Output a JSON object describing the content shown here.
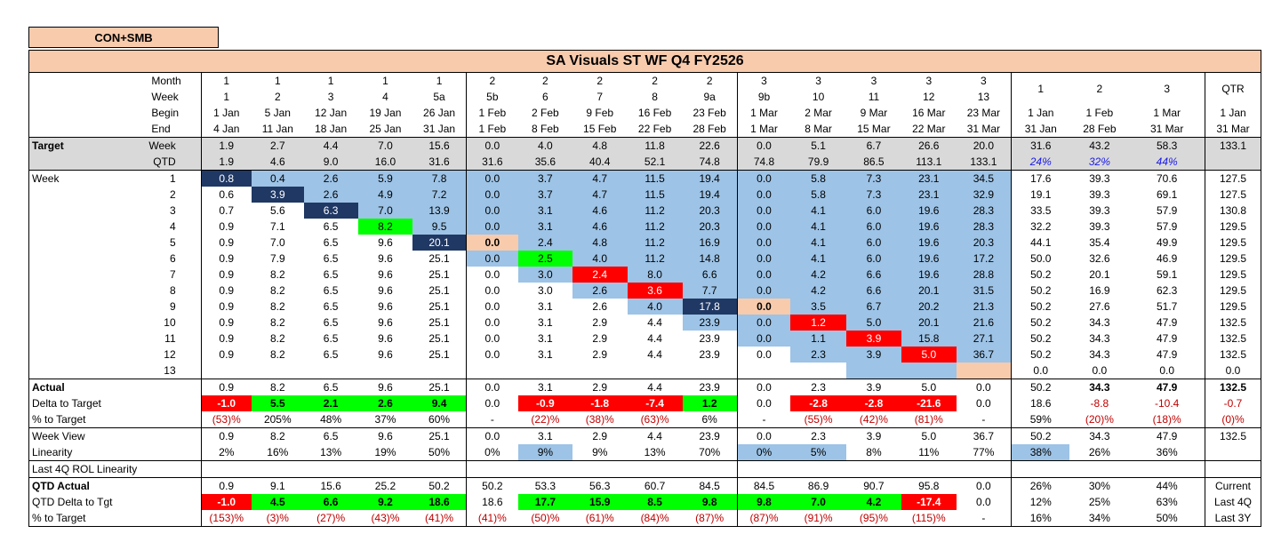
{
  "segment": "CON+SMB",
  "title": "SA Visuals ST WF Q4 FY2526",
  "header": {
    "labels": [
      "Month",
      "Week",
      "Begin",
      "End"
    ],
    "month": [
      "1",
      "1",
      "1",
      "1",
      "1",
      "2",
      "2",
      "2",
      "2",
      "2",
      "3",
      "3",
      "3",
      "3",
      "3"
    ],
    "week": [
      "1",
      "2",
      "3",
      "4",
      "5a",
      "5b",
      "6",
      "7",
      "8",
      "9a",
      "9b",
      "10",
      "11",
      "12",
      "13"
    ],
    "begin": [
      "1 Jan",
      "5 Jan",
      "12 Jan",
      "19 Jan",
      "26 Jan",
      "1 Feb",
      "2 Feb",
      "9 Feb",
      "16 Feb",
      "23 Feb",
      "1 Mar",
      "2 Mar",
      "9 Mar",
      "16 Mar",
      "23 Mar",
      "1 Jan",
      "1 Feb",
      "1 Mar",
      "1 Jan"
    ],
    "end": [
      "4 Jan",
      "11 Jan",
      "18 Jan",
      "25 Jan",
      "31 Jan",
      "1 Feb",
      "8 Feb",
      "15 Feb",
      "22 Feb",
      "28 Feb",
      "1 Mar",
      "8 Mar",
      "15 Mar",
      "22 Mar",
      "31 Mar",
      "31 Jan",
      "28 Feb",
      "31 Mar",
      "31 Mar"
    ],
    "summary": [
      "1",
      "2",
      "3",
      "QTR"
    ]
  },
  "target": {
    "label": "Target",
    "week_label": "Week",
    "qtd_label": "QTD",
    "week": [
      "1.9",
      "2.7",
      "4.4",
      "7.0",
      "15.6",
      "0.0",
      "4.0",
      "4.8",
      "11.8",
      "22.6",
      "0.0",
      "5.1",
      "6.7",
      "26.6",
      "20.0",
      "31.6",
      "43.2",
      "58.3",
      "133.1"
    ],
    "qtd": [
      "1.9",
      "4.6",
      "9.0",
      "16.0",
      "31.6",
      "31.6",
      "35.6",
      "40.4",
      "52.1",
      "74.8",
      "74.8",
      "79.9",
      "86.5",
      "113.1",
      "133.1",
      "24%",
      "32%",
      "44%",
      ""
    ]
  },
  "weeks": {
    "label": "Week",
    "rows": [
      {
        "n": "1",
        "v": [
          "0.8",
          "0.4",
          "2.6",
          "5.9",
          "7.8",
          "0.0",
          "3.7",
          "4.7",
          "11.5",
          "19.4",
          "0.0",
          "5.8",
          "7.3",
          "23.1",
          "34.5",
          "17.6",
          "39.3",
          "70.6",
          "127.5"
        ]
      },
      {
        "n": "2",
        "v": [
          "0.6",
          "3.9",
          "2.6",
          "4.9",
          "7.2",
          "0.0",
          "3.7",
          "4.7",
          "11.5",
          "19.4",
          "0.0",
          "5.8",
          "7.3",
          "23.1",
          "32.9",
          "19.1",
          "39.3",
          "69.1",
          "127.5"
        ]
      },
      {
        "n": "3",
        "v": [
          "0.7",
          "5.6",
          "6.3",
          "7.0",
          "13.9",
          "0.0",
          "3.1",
          "4.6",
          "11.2",
          "20.3",
          "0.0",
          "4.1",
          "6.0",
          "19.6",
          "28.3",
          "33.5",
          "39.3",
          "57.9",
          "130.8"
        ]
      },
      {
        "n": "4",
        "v": [
          "0.9",
          "7.1",
          "6.5",
          "8.2",
          "9.5",
          "0.0",
          "3.1",
          "4.6",
          "11.2",
          "20.3",
          "0.0",
          "4.1",
          "6.0",
          "19.6",
          "28.3",
          "32.2",
          "39.3",
          "57.9",
          "129.5"
        ]
      },
      {
        "n": "5",
        "v": [
          "0.9",
          "7.0",
          "6.5",
          "9.6",
          "20.1",
          "0.0",
          "2.4",
          "4.8",
          "11.2",
          "16.9",
          "0.0",
          "4.1",
          "6.0",
          "19.6",
          "20.3",
          "44.1",
          "35.4",
          "49.9",
          "129.5"
        ]
      },
      {
        "n": "6",
        "v": [
          "0.9",
          "7.9",
          "6.5",
          "9.6",
          "25.1",
          "0.0",
          "2.5",
          "4.0",
          "11.2",
          "14.8",
          "0.0",
          "4.1",
          "6.0",
          "19.6",
          "17.2",
          "50.0",
          "32.6",
          "46.9",
          "129.5"
        ]
      },
      {
        "n": "7",
        "v": [
          "0.9",
          "8.2",
          "6.5",
          "9.6",
          "25.1",
          "0.0",
          "3.0",
          "2.4",
          "8.0",
          "6.6",
          "0.0",
          "4.2",
          "6.6",
          "19.6",
          "28.8",
          "50.2",
          "20.1",
          "59.1",
          "129.5"
        ]
      },
      {
        "n": "8",
        "v": [
          "0.9",
          "8.2",
          "6.5",
          "9.6",
          "25.1",
          "0.0",
          "3.0",
          "2.6",
          "3.6",
          "7.7",
          "0.0",
          "4.2",
          "6.6",
          "20.1",
          "31.5",
          "50.2",
          "16.9",
          "62.3",
          "129.5"
        ]
      },
      {
        "n": "9",
        "v": [
          "0.9",
          "8.2",
          "6.5",
          "9.6",
          "25.1",
          "0.0",
          "3.1",
          "2.6",
          "4.0",
          "17.8",
          "0.0",
          "3.5",
          "6.7",
          "20.2",
          "21.3",
          "50.2",
          "27.6",
          "51.7",
          "129.5"
        ]
      },
      {
        "n": "10",
        "v": [
          "0.9",
          "8.2",
          "6.5",
          "9.6",
          "25.1",
          "0.0",
          "3.1",
          "2.9",
          "4.4",
          "23.9",
          "0.0",
          "1.2",
          "5.0",
          "20.1",
          "21.6",
          "50.2",
          "34.3",
          "47.9",
          "132.5"
        ]
      },
      {
        "n": "11",
        "v": [
          "0.9",
          "8.2",
          "6.5",
          "9.6",
          "25.1",
          "0.0",
          "3.1",
          "2.9",
          "4.4",
          "23.9",
          "0.0",
          "1.1",
          "3.9",
          "15.8",
          "27.1",
          "50.2",
          "34.3",
          "47.9",
          "132.5"
        ]
      },
      {
        "n": "12",
        "v": [
          "0.9",
          "8.2",
          "6.5",
          "9.6",
          "25.1",
          "0.0",
          "3.1",
          "2.9",
          "4.4",
          "23.9",
          "0.0",
          "2.3",
          "3.9",
          "5.0",
          "36.7",
          "50.2",
          "34.3",
          "47.9",
          "132.5"
        ]
      },
      {
        "n": "13",
        "v": [
          "",
          "",
          "",
          "",
          "",
          "",
          "",
          "",
          "",
          "",
          "",
          "",
          "",
          "",
          "",
          "0.0",
          "0.0",
          "0.0",
          "0.0"
        ]
      }
    ]
  },
  "actual": {
    "label": "Actual",
    "v": [
      "0.9",
      "8.2",
      "6.5",
      "9.6",
      "25.1",
      "0.0",
      "3.1",
      "2.9",
      "4.4",
      "23.9",
      "0.0",
      "2.3",
      "3.9",
      "5.0",
      "0.0",
      "50.2",
      "34.3",
      "47.9",
      "132.5"
    ]
  },
  "delta": {
    "label": "Delta to Target",
    "v": [
      "-1.0",
      "5.5",
      "2.1",
      "2.6",
      "9.4",
      "0.0",
      "-0.9",
      "-1.8",
      "-7.4",
      "1.2",
      "0.0",
      "-2.8",
      "-2.8",
      "-21.6",
      "0.0",
      "18.6",
      "-8.8",
      "-10.4",
      "-0.7"
    ]
  },
  "pct_target": {
    "label": "% to Target",
    "v": [
      "(53)%",
      "205%",
      "48%",
      "37%",
      "60%",
      "-",
      "(22)%",
      "(38)%",
      "(63)%",
      "6%",
      "-",
      "(55)%",
      "(42)%",
      "(81)%",
      "-",
      "59%",
      "(20)%",
      "(18)%",
      "(0)%"
    ]
  },
  "week_view": {
    "label": "Week View",
    "v": [
      "0.9",
      "8.2",
      "6.5",
      "9.6",
      "25.1",
      "0.0",
      "3.1",
      "2.9",
      "4.4",
      "23.9",
      "0.0",
      "2.3",
      "3.9",
      "5.0",
      "36.7",
      "50.2",
      "34.3",
      "47.9",
      "132.5"
    ]
  },
  "linearity": {
    "label": "Linearity",
    "v": [
      "2%",
      "16%",
      "13%",
      "19%",
      "50%",
      "0%",
      "9%",
      "9%",
      "13%",
      "70%",
      "0%",
      "5%",
      "8%",
      "11%",
      "77%",
      "38%",
      "26%",
      "36%",
      ""
    ]
  },
  "rol_label": "Last 4Q ROL Linearity",
  "qtd_actual": {
    "label": "QTD Actual",
    "v": [
      "0.9",
      "9.1",
      "15.6",
      "25.2",
      "50.2",
      "50.2",
      "53.3",
      "56.3",
      "60.7",
      "84.5",
      "84.5",
      "86.9",
      "90.7",
      "95.8",
      "0.0",
      "26%",
      "30%",
      "44%",
      "Current"
    ]
  },
  "qtd_delta": {
    "label": "QTD Delta to Tgt",
    "v": [
      "-1.0",
      "4.5",
      "6.6",
      "9.2",
      "18.6",
      "18.6",
      "17.7",
      "15.9",
      "8.5",
      "9.8",
      "9.8",
      "7.0",
      "4.2",
      "-17.4",
      "0.0",
      "12%",
      "25%",
      "63%",
      "Last 4Q"
    ]
  },
  "qtd_pct": {
    "label": "% to Target",
    "v": [
      "(153)%",
      "(3)%",
      "(27)%",
      "(43)%",
      "(41)%",
      "(41)%",
      "(50)%",
      "(61)%",
      "(84)%",
      "(87)%",
      "(87)%",
      "(91)%",
      "(95)%",
      "(115)%",
      "-",
      "16%",
      "34%",
      "50%",
      "Last 3Y"
    ]
  },
  "colors": {
    "peach": "#F8CBAD",
    "grey": "#D9D9D9",
    "light_blue": "#9DC3E6",
    "navy": "#203864",
    "green": "#00FF00",
    "red": "#FF0000",
    "negative_text": "#C00000",
    "pct_text": "#1A1AE6"
  }
}
